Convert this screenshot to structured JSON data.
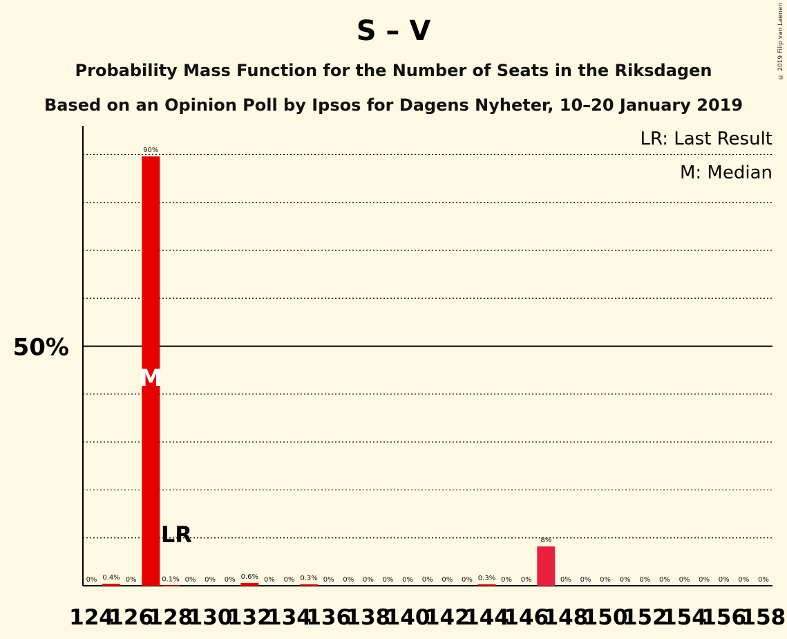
{
  "title": "S – V",
  "subtitle_1": "Probability Mass Function for the Number of Seats in the Riksdagen",
  "subtitle_2": "Based on an Opinion Poll by Ipsos for Dagens Nyheter, 10–20 January 2019",
  "copyright": "© 2019 Filip van Laenen",
  "legend": {
    "last_result": "LR: Last Result",
    "median": "M: Median"
  },
  "colors": {
    "bar": "#e60000",
    "bar_alt": "#e8203c",
    "background": "#fef9e3"
  },
  "chart_data": {
    "type": "bar",
    "ylim": [
      0,
      0.98
    ],
    "y_tick_label": "50%",
    "y_tick_value": 0.5,
    "x_tick_labels": [
      "124",
      "126",
      "128",
      "130",
      "132",
      "134",
      "136",
      "138",
      "140",
      "142",
      "144",
      "146",
      "148",
      "150",
      "152",
      "154",
      "156",
      "158"
    ],
    "categories": [
      124,
      125,
      126,
      127,
      128,
      129,
      130,
      131,
      132,
      133,
      134,
      135,
      136,
      137,
      138,
      139,
      140,
      141,
      142,
      143,
      144,
      145,
      146,
      147,
      148,
      149,
      150,
      151,
      152,
      153,
      154,
      155,
      156,
      157,
      158
    ],
    "values": [
      0,
      0.004,
      0,
      0.896,
      0.001,
      0,
      0,
      0,
      0.006,
      0,
      0,
      0.003,
      0,
      0,
      0,
      0,
      0,
      0,
      0,
      0,
      0.003,
      0,
      0,
      0.082,
      0,
      0,
      0,
      0,
      0,
      0,
      0,
      0,
      0,
      0,
      0
    ],
    "labels": [
      "0%",
      "0.4%",
      "0%",
      "90%",
      "0.1%",
      "0%",
      "0%",
      "0%",
      "0.6%",
      "0%",
      "0%",
      "0.3%",
      "0%",
      "0%",
      "0%",
      "0%",
      "0%",
      "0%",
      "0%",
      "0%",
      "0.3%",
      "0%",
      "0%",
      "8%",
      "0%",
      "0%",
      "0%",
      "0%",
      "0%",
      "0%",
      "0%",
      "0%",
      "0%",
      "0%",
      "0%"
    ],
    "median_seat": 127,
    "median_marker": "M",
    "last_result_seat": 128,
    "last_result_marker": "LR",
    "alt_color_seat": 147,
    "grid": true
  }
}
